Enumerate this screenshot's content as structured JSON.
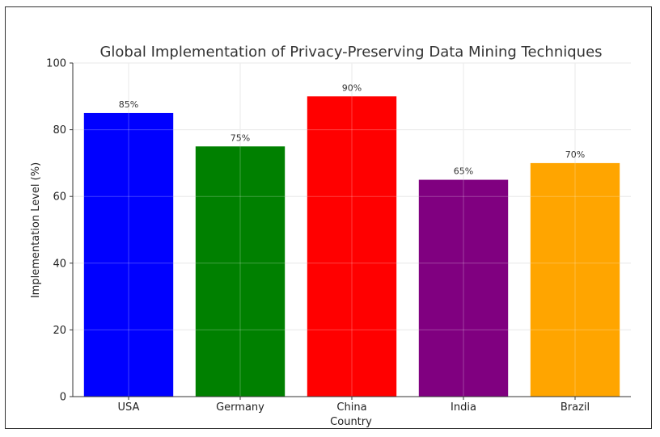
{
  "chart_data": {
    "type": "bar",
    "title": "Global Implementation of Privacy-Preserving Data Mining Techniques",
    "xlabel": "Country",
    "ylabel": "Implementation Level (%)",
    "categories": [
      "USA",
      "Germany",
      "China",
      "India",
      "Brazil"
    ],
    "values": [
      85,
      75,
      90,
      65,
      70
    ],
    "data_labels": [
      "85%",
      "75%",
      "90%",
      "65%",
      "70%"
    ],
    "colors": [
      "#0000ff",
      "#008000",
      "#ff0000",
      "#800080",
      "#ffa500"
    ],
    "ylim": [
      0,
      100
    ],
    "yticks": [
      0,
      20,
      40,
      60,
      80,
      100
    ],
    "grid": true,
    "legend": "none"
  }
}
